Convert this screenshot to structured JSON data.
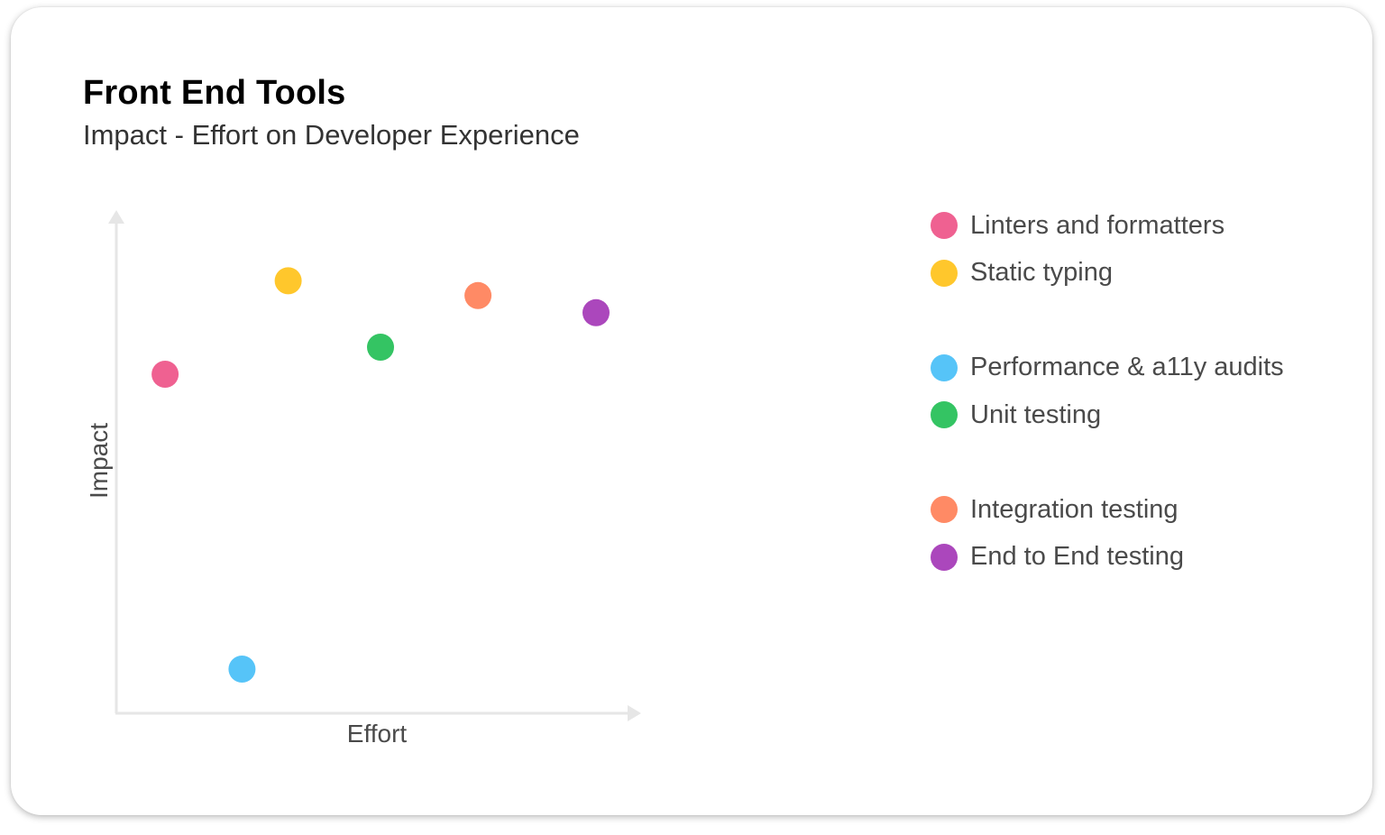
{
  "header": {
    "title": "Front End Tools",
    "subtitle": "Impact - Effort on Developer Experience"
  },
  "chart_data": {
    "type": "scatter",
    "title": "Front End Tools",
    "subtitle": "Impact - Effort on Developer Experience",
    "xlabel": "Effort",
    "ylabel": "Impact",
    "xlim": [
      0,
      100
    ],
    "ylim": [
      0,
      100
    ],
    "grid": false,
    "ticks": false,
    "legend_position": "right",
    "series": [
      {
        "name": "Linters and formatters",
        "color": "#EF6191",
        "x": [
          9.5
        ],
        "y": [
          69
        ]
      },
      {
        "name": "Static typing",
        "color": "#FFC72C",
        "x": [
          33.5
        ],
        "y": [
          88
        ]
      },
      {
        "name": "Performance & a11y audits",
        "color": "#56C4F8",
        "x": [
          24.5
        ],
        "y": [
          9
        ]
      },
      {
        "name": "Unit testing",
        "color": "#34C463",
        "x": [
          51.5
        ],
        "y": [
          74.5
        ]
      },
      {
        "name": "Integration testing",
        "color": "#FF8A65",
        "x": [
          70.5
        ],
        "y": [
          85
        ]
      },
      {
        "name": "End to End testing",
        "color": "#AB47BC",
        "x": [
          93.5
        ],
        "y": [
          81.5
        ]
      }
    ]
  }
}
